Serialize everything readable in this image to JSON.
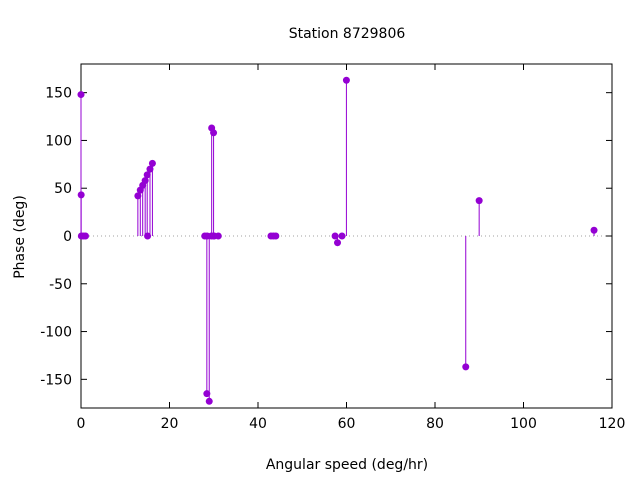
{
  "chart_data": {
    "type": "stem",
    "title": "Station 8729806",
    "xlabel": "Angular speed (deg/hr)",
    "ylabel": "Phase (deg)",
    "xlim": [
      0,
      120
    ],
    "ylim": [
      -180,
      180
    ],
    "xticks": [
      0,
      20,
      40,
      60,
      80,
      100,
      120
    ],
    "yticks": [
      -150,
      -100,
      -50,
      0,
      50,
      100,
      150
    ],
    "grid": false,
    "zero_line": true,
    "color": "#9400d3",
    "series": [
      {
        "points": [
          {
            "x": 0.0,
            "y": 148
          },
          {
            "x": 0.04,
            "y": 43
          },
          {
            "x": 0.08,
            "y": 0
          },
          {
            "x": 0.55,
            "y": 0
          },
          {
            "x": 1.02,
            "y": 0
          },
          {
            "x": 12.85,
            "y": 42
          },
          {
            "x": 13.4,
            "y": 48
          },
          {
            "x": 13.94,
            "y": 53
          },
          {
            "x": 14.5,
            "y": 58
          },
          {
            "x": 14.96,
            "y": 64
          },
          {
            "x": 15.04,
            "y": 0
          },
          {
            "x": 15.59,
            "y": 70
          },
          {
            "x": 16.14,
            "y": 76
          },
          {
            "x": 27.97,
            "y": 0
          },
          {
            "x": 28.44,
            "y": -165
          },
          {
            "x": 28.51,
            "y": 0
          },
          {
            "x": 28.98,
            "y": -173
          },
          {
            "x": 29.46,
            "y": 0
          },
          {
            "x": 29.53,
            "y": 113
          },
          {
            "x": 29.96,
            "y": 108
          },
          {
            "x": 30.0,
            "y": 0
          },
          {
            "x": 30.08,
            "y": 0
          },
          {
            "x": 31.02,
            "y": 0
          },
          {
            "x": 42.93,
            "y": 0
          },
          {
            "x": 43.48,
            "y": 0
          },
          {
            "x": 44.03,
            "y": 0
          },
          {
            "x": 57.42,
            "y": 0
          },
          {
            "x": 57.97,
            "y": -7
          },
          {
            "x": 58.98,
            "y": 0
          },
          {
            "x": 59.98,
            "y": 163
          },
          {
            "x": 86.95,
            "y": -137
          },
          {
            "x": 89.98,
            "y": 37
          },
          {
            "x": 115.94,
            "y": 6
          }
        ]
      }
    ]
  }
}
